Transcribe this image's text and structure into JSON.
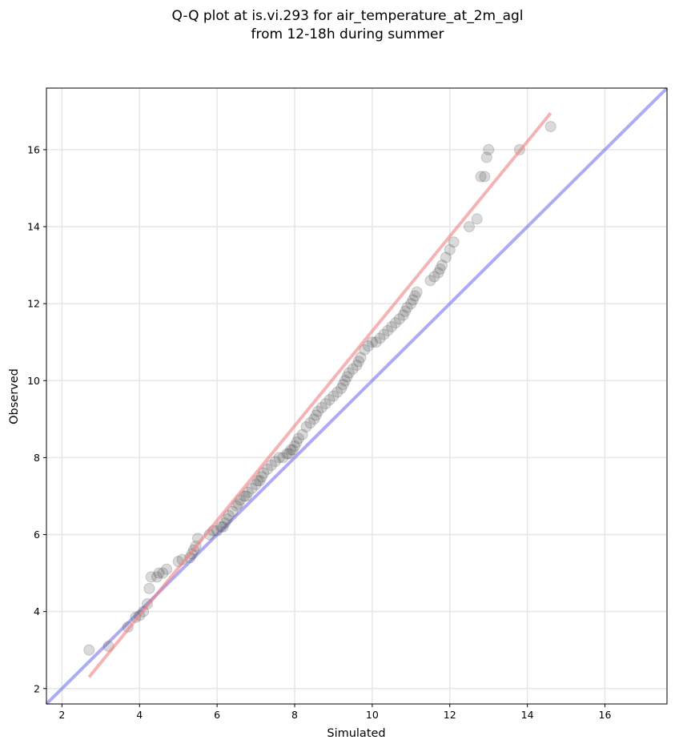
{
  "chart_data": {
    "type": "scatter",
    "title": "Q-Q plot at is.vi.293 for air_temperature_at_2m_agl",
    "subtitle": "from 12-18h during summer",
    "xlabel": "Simulated",
    "ylabel": "Observed",
    "xlim": [
      1.6,
      17.6
    ],
    "ylim": [
      1.6,
      17.6
    ],
    "x_ticks": [
      2,
      4,
      6,
      8,
      10,
      12,
      14,
      16
    ],
    "y_ticks": [
      2,
      4,
      6,
      8,
      10,
      12,
      14,
      16
    ],
    "x_tick_labels": [
      "2",
      "4",
      "6",
      "8",
      "10",
      "12",
      "14",
      "16"
    ],
    "y_tick_labels": [
      "2",
      "4",
      "6",
      "8",
      "10",
      "12",
      "14",
      "16"
    ],
    "grid": true,
    "colors": {
      "points": "#555555",
      "fit_line": "#f08080",
      "identity_line": "#8080f0",
      "grid": "#e6e6e6"
    },
    "points": {
      "x": [
        2.7,
        3.2,
        3.7,
        3.9,
        4.0,
        4.1,
        4.2,
        4.25,
        4.3,
        4.45,
        4.5,
        4.6,
        4.7,
        5.0,
        5.1,
        5.3,
        5.35,
        5.4,
        5.45,
        5.5,
        5.8,
        5.9,
        6.0,
        6.1,
        6.15,
        6.2,
        6.25,
        6.3,
        6.4,
        6.5,
        6.55,
        6.6,
        6.7,
        6.75,
        6.8,
        6.9,
        7.0,
        7.05,
        7.1,
        7.15,
        7.2,
        7.3,
        7.4,
        7.5,
        7.6,
        7.7,
        7.8,
        7.85,
        7.9,
        7.95,
        8.0,
        8.05,
        8.1,
        8.2,
        8.3,
        8.4,
        8.5,
        8.55,
        8.6,
        8.7,
        8.8,
        8.9,
        9.0,
        9.1,
        9.2,
        9.25,
        9.3,
        9.35,
        9.4,
        9.5,
        9.6,
        9.65,
        9.7,
        9.8,
        9.9,
        10.0,
        10.1,
        10.2,
        10.3,
        10.4,
        10.5,
        10.6,
        10.7,
        10.8,
        10.85,
        10.9,
        11.0,
        11.05,
        11.1,
        11.15,
        11.5,
        11.6,
        11.7,
        11.75,
        11.8,
        11.9,
        12.0,
        12.1,
        12.5,
        12.7,
        12.8,
        12.9,
        12.95,
        13.0,
        13.8,
        14.6
      ],
      "y": [
        3.0,
        3.1,
        3.6,
        3.85,
        3.9,
        4.0,
        4.2,
        4.6,
        4.9,
        4.9,
        5.0,
        5.0,
        5.1,
        5.3,
        5.35,
        5.4,
        5.5,
        5.6,
        5.7,
        5.9,
        6.0,
        6.1,
        6.1,
        6.2,
        6.2,
        6.3,
        6.4,
        6.5,
        6.6,
        6.75,
        6.8,
        6.9,
        7.0,
        7.0,
        7.1,
        7.2,
        7.3,
        7.4,
        7.4,
        7.5,
        7.6,
        7.7,
        7.8,
        7.9,
        8.0,
        8.0,
        8.1,
        8.1,
        8.2,
        8.2,
        8.3,
        8.4,
        8.5,
        8.6,
        8.8,
        8.9,
        9.0,
        9.1,
        9.2,
        9.3,
        9.4,
        9.5,
        9.6,
        9.7,
        9.8,
        9.9,
        10.0,
        10.1,
        10.2,
        10.3,
        10.4,
        10.5,
        10.6,
        10.8,
        10.9,
        11.0,
        11.0,
        11.1,
        11.2,
        11.3,
        11.4,
        11.5,
        11.6,
        11.7,
        11.8,
        11.9,
        12.0,
        12.1,
        12.2,
        12.3,
        12.6,
        12.7,
        12.8,
        12.9,
        13.0,
        13.2,
        13.4,
        13.6,
        14.0,
        14.2,
        15.3,
        15.3,
        15.8,
        16.0,
        16.0,
        16.6
      ]
    },
    "fit_line": {
      "x": [
        2.7,
        14.6
      ],
      "y": [
        2.3,
        16.95
      ]
    },
    "identity_line": {
      "x": [
        1.6,
        17.6
      ],
      "y": [
        1.6,
        17.6
      ]
    }
  }
}
